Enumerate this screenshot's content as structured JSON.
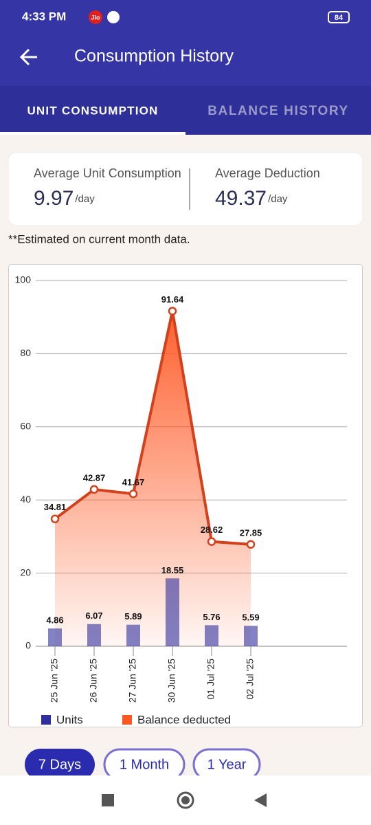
{
  "status_bar": {
    "time": "4:33 PM",
    "carrier": "Jio",
    "battery": "84"
  },
  "header": {
    "title": "Consumption History"
  },
  "tabs": [
    "UNIT CONSUMPTION",
    "BALANCE HISTORY"
  ],
  "summary": [
    {
      "label": "Average Unit Consumption",
      "value": "9.97",
      "unit": "/day"
    },
    {
      "label": "Average Deduction",
      "value": "49.37",
      "unit": "/day"
    }
  ],
  "note": "**Estimated on current month data.",
  "chart_data": {
    "type": "combo",
    "categories": [
      "25 Jun '25",
      "26 Jun '25",
      "27 Jun '25",
      "30 Jun '25",
      "01 Jul '25",
      "02 Jul '25"
    ],
    "series": [
      {
        "name": "Units",
        "type": "bar",
        "color": "#2e2e9e",
        "values": [
          4.86,
          6.07,
          5.89,
          18.55,
          5.76,
          5.59
        ]
      },
      {
        "name": "Balance deducted",
        "type": "line",
        "color": "#ff5722",
        "values": [
          34.81,
          42.87,
          41.67,
          91.64,
          28.62,
          27.85
        ]
      }
    ],
    "ylim": [
      0,
      100
    ],
    "yticks": [
      0,
      20,
      40,
      60,
      80,
      100
    ],
    "grid": true
  },
  "range_buttons": [
    "7 Days",
    "1 Month",
    "1 Year"
  ]
}
